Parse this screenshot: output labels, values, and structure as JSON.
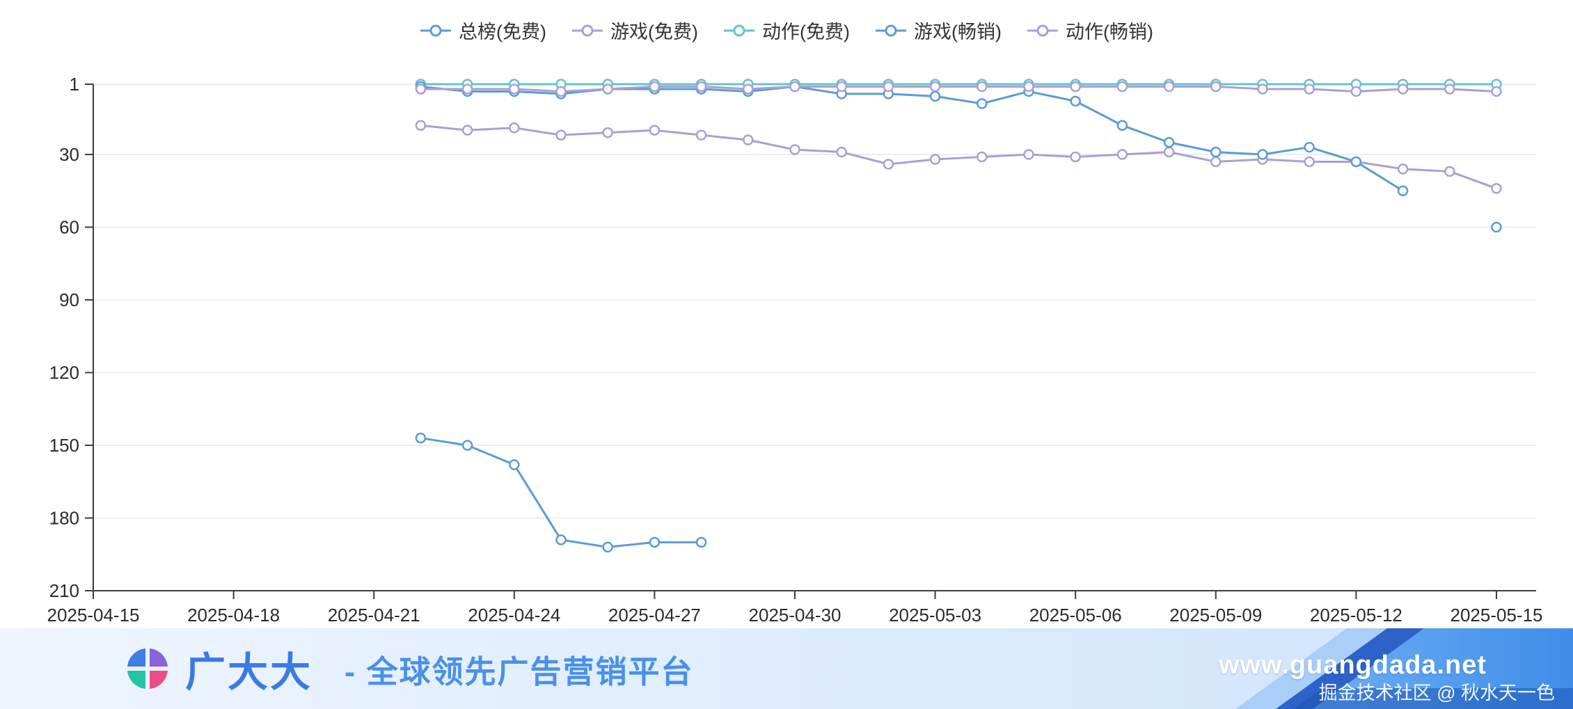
{
  "legend": {
    "items": [
      {
        "label": "总榜(免费)",
        "color": "#5b9bd5"
      },
      {
        "label": "游戏(免费)",
        "color": "#ab9ed6"
      },
      {
        "label": "动作(免费)",
        "color": "#63c4c7"
      },
      {
        "label": "游戏(畅销)",
        "color": "#5b9bd5"
      },
      {
        "label": "动作(畅销)",
        "color": "#ab9ed6"
      }
    ]
  },
  "chart_data": {
    "type": "line",
    "y_axis_inverted": true,
    "y_ticks": [
      1,
      30,
      60,
      90,
      120,
      150,
      180,
      210
    ],
    "y_max": 210,
    "x_start": "2025-04-15",
    "x_end": "2025-05-15",
    "x_tick_labels": [
      "2025-04-15",
      "2025-04-18",
      "2025-04-21",
      "2025-04-24",
      "2025-04-27",
      "2025-04-30",
      "2025-05-03",
      "2025-05-06",
      "2025-05-09",
      "2025-05-12",
      "2025-05-15"
    ],
    "grid": "horizontal-only",
    "legend_position": "top-center",
    "dates": [
      "2025-04-22",
      "2025-04-23",
      "2025-04-24",
      "2025-04-25",
      "2025-04-26",
      "2025-04-27",
      "2025-04-28",
      "2025-04-29",
      "2025-04-30",
      "2025-05-01",
      "2025-05-02",
      "2025-05-03",
      "2025-05-04",
      "2025-05-05",
      "2025-05-06",
      "2025-05-07",
      "2025-05-08",
      "2025-05-09",
      "2025-05-10",
      "2025-05-11",
      "2025-05-12",
      "2025-05-13",
      "2025-05-14",
      "2025-05-15"
    ],
    "series": [
      {
        "name": "总榜(免费)",
        "color": "#5b9bd5",
        "values": [
          147,
          150,
          158,
          189,
          192,
          190,
          190,
          null,
          null,
          null,
          null,
          null,
          null,
          null,
          null,
          null,
          null,
          null,
          null,
          null,
          null,
          null,
          null,
          null
        ]
      },
      {
        "name": "游戏(免费)",
        "color": "#ab9ed6",
        "values": [
          18,
          20,
          19,
          22,
          21,
          20,
          22,
          24,
          28,
          29,
          34,
          32,
          31,
          30,
          31,
          30,
          29,
          33,
          32,
          33,
          33,
          36,
          37,
          44
        ]
      },
      {
        "name": "动作(免费)",
        "color": "#63c4c7",
        "values": [
          1,
          1,
          1,
          1,
          1,
          1,
          1,
          1,
          1,
          1,
          1,
          1,
          1,
          1,
          1,
          1,
          1,
          1,
          1,
          1,
          1,
          1,
          1,
          1
        ]
      },
      {
        "name": "游戏(畅销)",
        "color": "#5b9bd5",
        "values": [
          2,
          4,
          4,
          5,
          3,
          3,
          3,
          4,
          2,
          5,
          5,
          6,
          9,
          4,
          8,
          18,
          25,
          29,
          30,
          27,
          33,
          45,
          null,
          60
        ]
      },
      {
        "name": "动作(畅销)",
        "color": "#ab9ed6",
        "values": [
          3,
          3,
          3,
          4,
          3,
          2,
          2,
          3,
          2,
          2,
          2,
          2,
          2,
          2,
          2,
          2,
          2,
          2,
          3,
          3,
          4,
          3,
          3,
          4
        ]
      }
    ]
  },
  "footer": {
    "brand": "广大大",
    "tagline": "- 全球领先广告营销平台",
    "url": "www.guangdada.net",
    "watermark": "掘金技术社区 @ 秋水天一色"
  }
}
